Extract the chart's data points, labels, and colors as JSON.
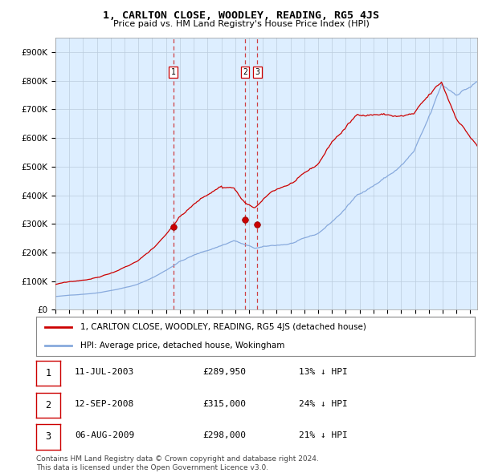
{
  "title": "1, CARLTON CLOSE, WOODLEY, READING, RG5 4JS",
  "subtitle": "Price paid vs. HM Land Registry's House Price Index (HPI)",
  "hpi_color": "#88aadd",
  "price_color": "#cc0000",
  "bg_color": "#ddeeff",
  "grid_color": "#bbccdd",
  "ylim": [
    0,
    950000
  ],
  "yticks": [
    0,
    100000,
    200000,
    300000,
    400000,
    500000,
    600000,
    700000,
    800000,
    900000
  ],
  "ytick_labels": [
    "£0",
    "£100K",
    "£200K",
    "£300K",
    "£400K",
    "£500K",
    "£600K",
    "£700K",
    "£800K",
    "£900K"
  ],
  "legend_entry1": "1, CARLTON CLOSE, WOODLEY, READING, RG5 4JS (detached house)",
  "legend_entry2": "HPI: Average price, detached house, Wokingham",
  "transaction1_label": "1",
  "transaction1_date": "11-JUL-2003",
  "transaction1_price": "£289,950",
  "transaction1_hpi": "13% ↓ HPI",
  "transaction1_year": 2003.53,
  "transaction1_value": 289950,
  "transaction2_label": "2",
  "transaction2_date": "12-SEP-2008",
  "transaction2_price": "£315,000",
  "transaction2_hpi": "24% ↓ HPI",
  "transaction2_year": 2008.71,
  "transaction2_value": 315000,
  "transaction3_label": "3",
  "transaction3_date": "06-AUG-2009",
  "transaction3_price": "£298,000",
  "transaction3_hpi": "21% ↓ HPI",
  "transaction3_year": 2009.6,
  "transaction3_value": 298000,
  "footer1": "Contains HM Land Registry data © Crown copyright and database right 2024.",
  "footer2": "This data is licensed under the Open Government Licence v3.0."
}
